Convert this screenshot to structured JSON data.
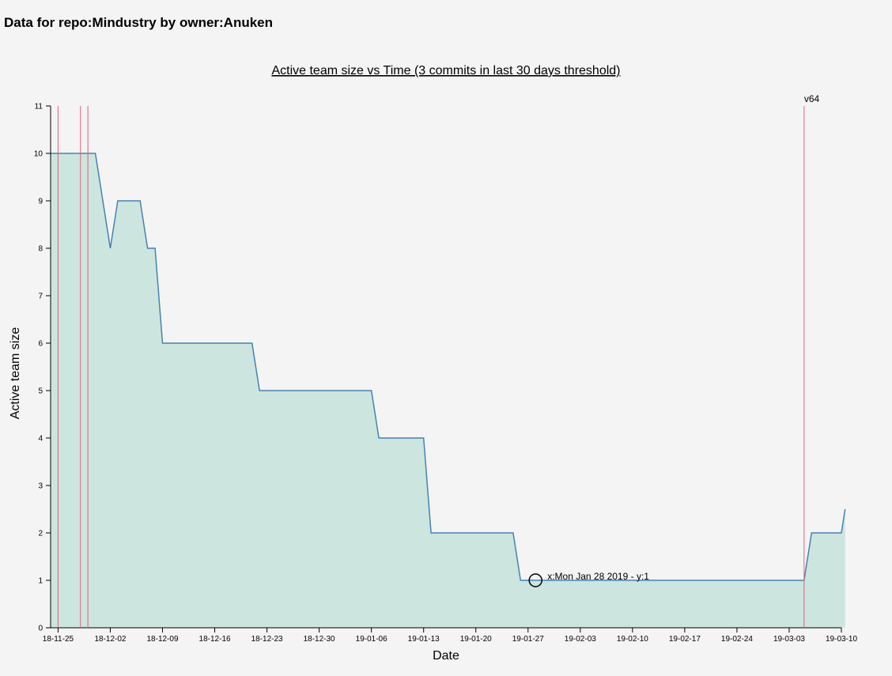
{
  "page": {
    "heading": "Data for repo:Mindustry by owner:Anuken"
  },
  "chart_data": {
    "type": "area",
    "title": "Active team size vs Time (3 commits in last 30 days threshold)",
    "xlabel": "Date",
    "ylabel": "Active team size",
    "xlim": [
      "2018-11-24",
      "2019-03-10"
    ],
    "ylim": [
      0,
      11
    ],
    "x_tick_labels": [
      "18-11-25",
      "18-12-02",
      "18-12-09",
      "18-12-16",
      "18-12-23",
      "18-12-30",
      "19-01-06",
      "19-01-13",
      "19-01-20",
      "19-01-27",
      "19-02-03",
      "19-02-10",
      "19-02-17",
      "19-02-24",
      "19-03-03",
      "19-03-10"
    ],
    "y_ticks": [
      0,
      1,
      2,
      3,
      4,
      5,
      6,
      7,
      8,
      9,
      10,
      11
    ],
    "grid": false,
    "line_color": "#4682b4",
    "fill_color": "#cce5df",
    "release_line_color": "#e0607e",
    "series": [
      {
        "x": [
          "2018-11-24",
          "2018-11-30",
          "2018-12-02",
          "2018-12-03",
          "2018-12-06",
          "2018-12-07",
          "2018-12-08",
          "2018-12-09",
          "2018-12-21",
          "2018-12-22",
          "2019-01-06",
          "2019-01-07",
          "2019-01-13",
          "2019-01-14",
          "2019-01-25",
          "2019-01-26",
          "2019-03-05",
          "2019-03-06",
          "2019-03-10",
          "2019-03-10T12:00"
        ],
        "y": [
          10,
          10,
          8,
          9,
          9,
          8,
          8,
          6,
          6,
          5,
          5,
          4,
          4,
          2,
          2,
          1,
          1,
          2,
          2,
          2.5
        ]
      }
    ],
    "release_markers": [
      {
        "x": "2018-11-25",
        "label": ""
      },
      {
        "x": "2018-11-28",
        "label": ""
      },
      {
        "x": "2018-11-29",
        "label": ""
      },
      {
        "x": "2019-03-05",
        "label": "v64"
      }
    ],
    "hover_point": {
      "x": "2019-01-28",
      "y": 1,
      "label": "x:Mon Jan 28 2019 - y:1"
    }
  }
}
